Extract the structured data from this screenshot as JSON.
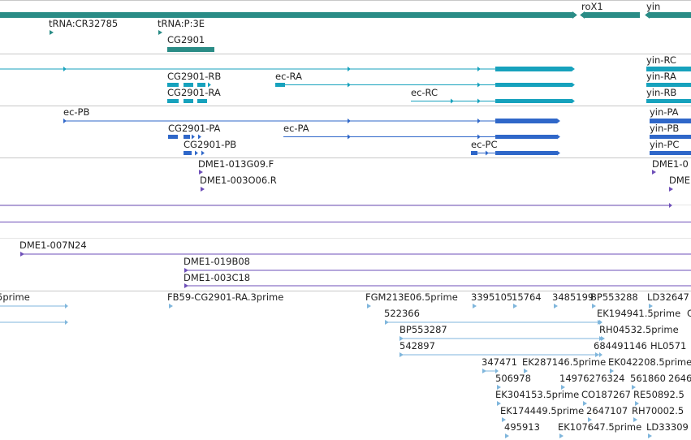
{
  "tracks": {
    "genes": {
      "color": "#2a8c86",
      "labels": [
        "roX1",
        "yin",
        "tRNA:CR32785",
        "tRNA:P:3E",
        "CG2901"
      ]
    },
    "transcripts_a": {
      "color": "#17a2bd",
      "labels": [
        "yin-RC",
        "CG2901-RB",
        "ec-RA",
        "yin-RA",
        "CG2901-RA",
        "ec-RC",
        "yin-RB"
      ]
    },
    "transcripts_b": {
      "color": "#2f67c9",
      "labels": [
        "ec-PB",
        "yin-PA",
        "CG2901-PA",
        "ec-PA",
        "yin-PB",
        "CG2901-PB",
        "ec-PC",
        "yin-PC"
      ]
    },
    "clones": {
      "color": "#6e4fb8",
      "labels": [
        "DME1-013G09.F",
        "DME1-0",
        "DME1-003O06.R",
        "DME",
        "DME1-007N24",
        "DME1-019B08",
        "DME1-003C18"
      ]
    },
    "ests": {
      "color": "#7fb6dc",
      "labels": [
        "5prime",
        "FB59-CG2901-RA.3prime",
        "FGM213E06.5prime",
        "3395105",
        "15764",
        "3485199",
        "BP553288",
        "LD32647",
        "522366",
        "EK194941.5prime",
        "C",
        "BP553287",
        "RH04532.5prime",
        "542897",
        "684491146",
        "HL0571",
        "347471",
        "EK287146.5prime",
        "EK042208.5prime",
        "506978",
        "14976276324",
        "561860",
        "2646",
        "EK304153.5prime",
        "CO187267",
        "RE50892.5",
        "EK174449.5prime",
        "2647107",
        "RH70002.5",
        "495913",
        "EK107647.5prime",
        "LD33309"
      ]
    }
  }
}
